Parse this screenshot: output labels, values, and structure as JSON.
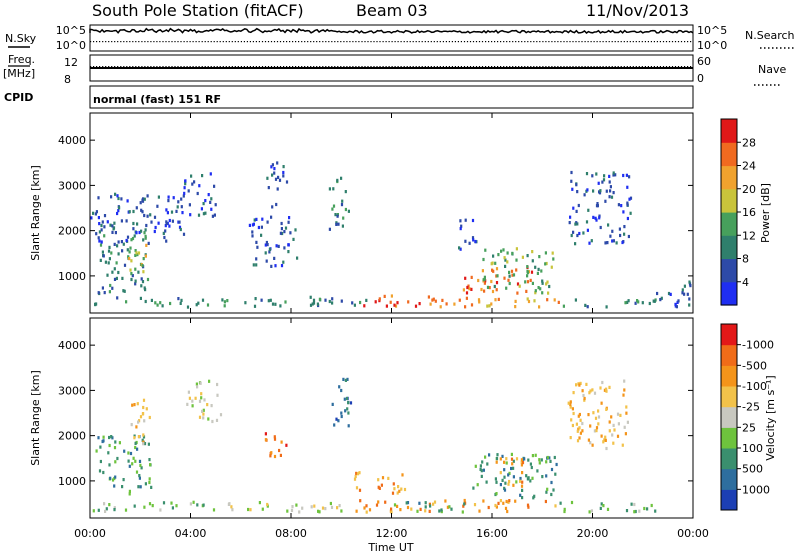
{
  "header": {
    "station": "South Pole Station (fitACF)",
    "beam": "Beam 03",
    "date": "11/Nov/2013"
  },
  "strips": {
    "nsky_label": "N.Sky",
    "nsearch_label": "N.Search",
    "nsky_ticks": [
      "10^5",
      "10^0"
    ],
    "nsearch_ticks": [
      "10^5",
      "10^0"
    ],
    "freq_label_1": "Freq.",
    "freq_label_2": "[MHz]",
    "freq_ticks": [
      "12",
      "8"
    ],
    "nave_label": "Nave",
    "nave_ticks": [
      "60",
      "0"
    ],
    "cpid_label": "CPID",
    "cpid_value": "normal (fast) 151 RF"
  },
  "chart_data": [
    {
      "type": "heatmap",
      "panel": "power",
      "ylabel": "Slant Range [km]",
      "colorbar_label": "Power [dB]",
      "colorbar_ticks": [
        "4",
        "8",
        "12",
        "16",
        "20",
        "24",
        "28"
      ],
      "colorbar_colors": [
        "#1f2ef2",
        "#2d4aa8",
        "#2f7f6c",
        "#47a05c",
        "#c9c43b",
        "#f0a22e",
        "#f06a20",
        "#e01818"
      ],
      "y_ticks": [
        "1000",
        "2000",
        "3000",
        "4000"
      ],
      "ylim": [
        180,
        4600
      ],
      "x_ticks": [
        "00:00",
        "04:00",
        "08:00",
        "12:00",
        "16:00",
        "20:00",
        "00:00"
      ],
      "xlim_hours": [
        0,
        24
      ],
      "regions": [
        {
          "t0": 0.1,
          "t1": 11.0,
          "r0": 300,
          "r1": 520,
          "level": 2
        },
        {
          "t0": 10.3,
          "t1": 15.0,
          "r0": 300,
          "r1": 550,
          "level": 6
        },
        {
          "t0": 15.0,
          "t1": 18.8,
          "r0": 300,
          "r1": 500,
          "level": 5
        },
        {
          "t0": 18.8,
          "t1": 22.5,
          "r0": 300,
          "r1": 500,
          "level": 2
        },
        {
          "t0": 14.8,
          "t1": 17.6,
          "r0": 600,
          "r1": 1200,
          "level": 6
        },
        {
          "t0": 15.6,
          "t1": 18.4,
          "r0": 600,
          "r1": 1600,
          "level": 3
        },
        {
          "t0": 0.3,
          "t1": 2.3,
          "r0": 600,
          "r1": 2200,
          "level": 2
        },
        {
          "t0": 1.5,
          "t1": 2.4,
          "r0": 900,
          "r1": 1700,
          "level": 4
        },
        {
          "t0": 0.0,
          "t1": 3.8,
          "r0": 1700,
          "r1": 2800,
          "level": 1
        },
        {
          "t0": 3.7,
          "t1": 5.0,
          "r0": 2300,
          "r1": 3300,
          "level": 1
        },
        {
          "t0": 6.2,
          "t1": 8.2,
          "r0": 1200,
          "r1": 2300,
          "level": 1
        },
        {
          "t0": 7.0,
          "t1": 7.8,
          "r0": 2500,
          "r1": 3500,
          "level": 1
        },
        {
          "t0": 9.5,
          "t1": 10.3,
          "r0": 2000,
          "r1": 3200,
          "level": 2
        },
        {
          "t0": 14.6,
          "t1": 15.4,
          "r0": 1500,
          "r1": 2300,
          "level": 1
        },
        {
          "t0": 19.0,
          "t1": 21.5,
          "r0": 1700,
          "r1": 3300,
          "level": 1
        },
        {
          "t0": 22.5,
          "t1": 24.0,
          "r0": 300,
          "r1": 900,
          "level": 1
        }
      ]
    },
    {
      "type": "heatmap",
      "panel": "velocity",
      "ylabel": "Slant Range [km]",
      "colorbar_label": "Velocity [m s⁻¹]",
      "colorbar_ticks": [
        "1000",
        "500",
        "100",
        "25",
        "-25",
        "-100",
        "-500",
        "-1000"
      ],
      "colorbar_colors": [
        "#1c3fb4",
        "#2e6e9e",
        "#3a8f6e",
        "#6ec33d",
        "#c8c8c0",
        "#f2c24a",
        "#f4941a",
        "#f06c18",
        "#e31818"
      ],
      "y_ticks": [
        "1000",
        "2000",
        "3000",
        "4000"
      ],
      "ylim": [
        180,
        4600
      ],
      "x_ticks": [
        "00:00",
        "04:00",
        "08:00",
        "12:00",
        "16:00",
        "20:00",
        "00:00"
      ],
      "xlim_hours": [
        0,
        24
      ],
      "xlabel": "Time UT",
      "regions": [
        {
          "t0": 0.1,
          "t1": 5.0,
          "r0": 300,
          "r1": 520,
          "level": 3
        },
        {
          "t0": 5.0,
          "t1": 10.5,
          "r0": 300,
          "r1": 520,
          "level": 4
        },
        {
          "t0": 10.5,
          "t1": 18.5,
          "r0": 300,
          "r1": 560,
          "level": 6
        },
        {
          "t0": 12.0,
          "t1": 15.0,
          "r0": 300,
          "r1": 520,
          "level": 2
        },
        {
          "t0": 18.5,
          "t1": 22.5,
          "r0": 300,
          "r1": 520,
          "level": 3
        },
        {
          "t0": 0.2,
          "t1": 2.4,
          "r0": 700,
          "r1": 2000,
          "level": 2
        },
        {
          "t0": 15.2,
          "t1": 18.6,
          "r0": 600,
          "r1": 1600,
          "level": 2
        },
        {
          "t0": 16.0,
          "t1": 17.2,
          "r0": 800,
          "r1": 1500,
          "level": 6
        },
        {
          "t0": 1.5,
          "t1": 2.4,
          "r0": 1800,
          "r1": 2800,
          "level": 5
        },
        {
          "t0": 3.8,
          "t1": 5.2,
          "r0": 2300,
          "r1": 3200,
          "level": 4
        },
        {
          "t0": 6.8,
          "t1": 7.8,
          "r0": 1500,
          "r1": 2100,
          "level": 7
        },
        {
          "t0": 9.6,
          "t1": 10.4,
          "r0": 2100,
          "r1": 3300,
          "level": 1
        },
        {
          "t0": 10.5,
          "t1": 12.5,
          "r0": 700,
          "r1": 1200,
          "level": 6
        },
        {
          "t0": 19.0,
          "t1": 21.5,
          "r0": 1700,
          "r1": 3200,
          "level": 5
        }
      ]
    }
  ]
}
